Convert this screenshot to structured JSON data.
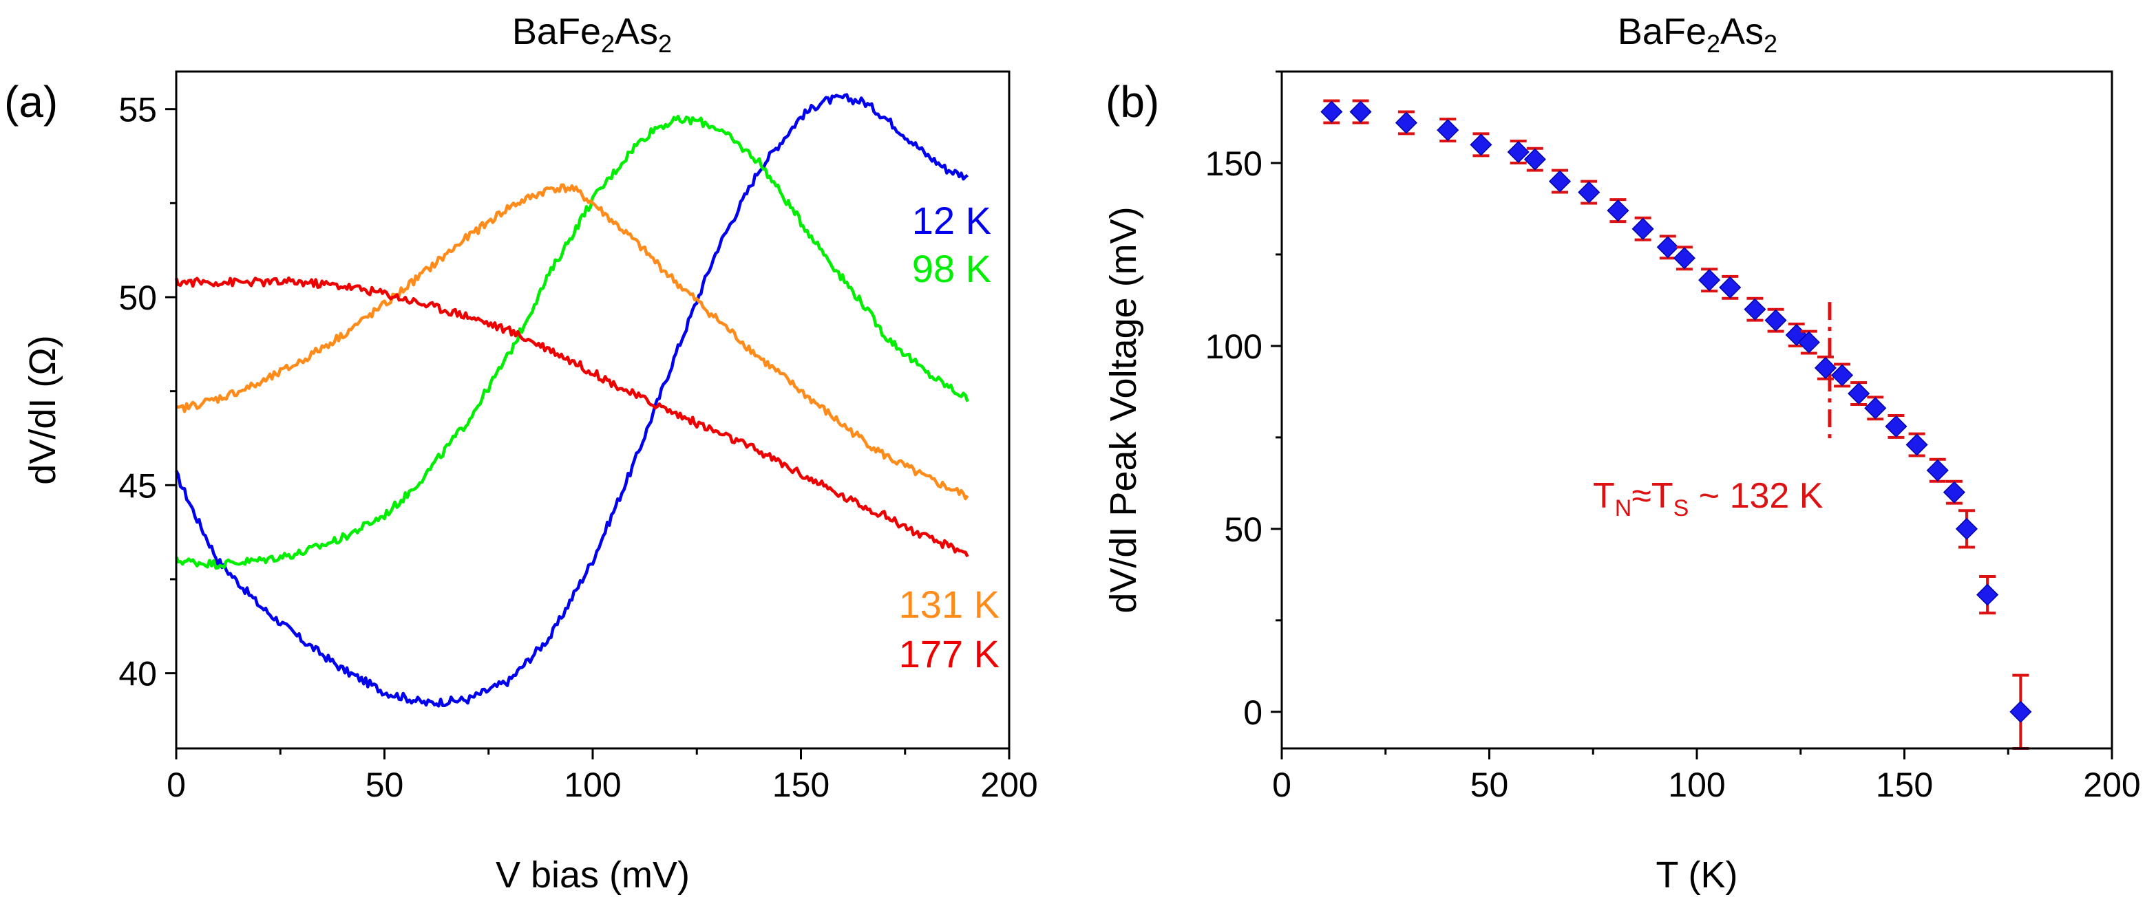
{
  "chart_data": [
    {
      "panel_label": "(a)",
      "type": "line",
      "title": {
        "main": "BaFe",
        "sub1": "2",
        "mid": "As",
        "sub2": "2"
      },
      "xlabel": "V bias (mV)",
      "ylabel": "dV/dI (Ω)",
      "xlim": [
        0,
        200
      ],
      "ylim": [
        38,
        56
      ],
      "xticks": [
        0,
        50,
        100,
        150,
        200
      ],
      "yticks": [
        40,
        45,
        50,
        55
      ],
      "grid": false,
      "series": [
        {
          "name": "12 K",
          "color": "#0000ee",
          "x": [
            0,
            5,
            10,
            20,
            30,
            40,
            50,
            60,
            70,
            80,
            90,
            100,
            110,
            120,
            130,
            140,
            150,
            155,
            160,
            165,
            170,
            175,
            180,
            185,
            190
          ],
          "y": [
            45.3,
            44.1,
            43.0,
            41.8,
            40.9,
            40.1,
            39.5,
            39.2,
            39.3,
            39.8,
            41.0,
            43.0,
            45.6,
            48.5,
            51.3,
            53.4,
            54.8,
            55.2,
            55.3,
            55.2,
            54.8,
            54.3,
            53.8,
            53.4,
            53.2
          ]
        },
        {
          "name": "98 K",
          "color": "#00ee00",
          "x": [
            0,
            10,
            20,
            30,
            40,
            50,
            55,
            60,
            70,
            80,
            90,
            100,
            110,
            115,
            120,
            125,
            130,
            140,
            150,
            160,
            165,
            170,
            180,
            190
          ],
          "y": [
            43.0,
            42.9,
            43.0,
            43.2,
            43.6,
            44.2,
            44.7,
            45.3,
            46.7,
            48.5,
            50.7,
            52.6,
            54.0,
            54.5,
            54.7,
            54.7,
            54.5,
            53.6,
            52.0,
            50.5,
            49.8,
            49.0,
            48.0,
            47.3
          ]
        },
        {
          "name": "131 K",
          "color": "#ff8c1a",
          "x": [
            0,
            10,
            20,
            30,
            40,
            50,
            60,
            70,
            80,
            90,
            95,
            100,
            110,
            120,
            130,
            140,
            150,
            160,
            170,
            180,
            190
          ],
          "y": [
            47.0,
            47.3,
            47.7,
            48.3,
            49.0,
            49.8,
            50.7,
            51.6,
            52.4,
            52.9,
            52.9,
            52.5,
            51.5,
            50.4,
            49.4,
            48.4,
            47.5,
            46.6,
            45.8,
            45.2,
            44.7
          ]
        },
        {
          "name": "177 K",
          "color": "#ee0000",
          "x": [
            0,
            10,
            20,
            30,
            40,
            50,
            60,
            70,
            80,
            90,
            100,
            110,
            120,
            130,
            140,
            150,
            160,
            170,
            180,
            190
          ],
          "y": [
            50.4,
            50.4,
            50.4,
            50.4,
            50.3,
            50.1,
            49.8,
            49.5,
            49.1,
            48.6,
            48.0,
            47.4,
            46.9,
            46.4,
            45.9,
            45.3,
            44.7,
            44.2,
            43.6,
            43.2
          ]
        }
      ],
      "legend": [
        {
          "text": "12 K",
          "color": "#0000ee"
        },
        {
          "text": "98 K",
          "color": "#00ee00"
        },
        {
          "text": "131 K",
          "color": "#ff8c1a"
        },
        {
          "text": "177 K",
          "color": "#ee0000"
        }
      ]
    },
    {
      "panel_label": "(b)",
      "type": "scatter",
      "title": {
        "main": "BaFe",
        "sub1": "2",
        "mid": "As",
        "sub2": "2"
      },
      "xlabel": "T (K)",
      "ylabel": "dV/dI Peak Voltage (mV)",
      "xlim": [
        0,
        200
      ],
      "ylim": [
        -10,
        175
      ],
      "xticks": [
        0,
        50,
        100,
        150,
        200
      ],
      "yticks": [
        0,
        50,
        100,
        150
      ],
      "grid": false,
      "marker_color": "#1a1aee",
      "errorbar_color": "#dd1111",
      "points": [
        {
          "x": 12,
          "y": 164,
          "err": 3
        },
        {
          "x": 19,
          "y": 164,
          "err": 3
        },
        {
          "x": 30,
          "y": 161,
          "err": 3
        },
        {
          "x": 40,
          "y": 159,
          "err": 3
        },
        {
          "x": 48,
          "y": 155,
          "err": 3
        },
        {
          "x": 57,
          "y": 153,
          "err": 3
        },
        {
          "x": 61,
          "y": 151,
          "err": 3
        },
        {
          "x": 67,
          "y": 145,
          "err": 3
        },
        {
          "x": 74,
          "y": 142,
          "err": 3
        },
        {
          "x": 81,
          "y": 137,
          "err": 3
        },
        {
          "x": 87,
          "y": 132,
          "err": 3
        },
        {
          "x": 93,
          "y": 127,
          "err": 3
        },
        {
          "x": 97,
          "y": 124,
          "err": 3
        },
        {
          "x": 103,
          "y": 118,
          "err": 3
        },
        {
          "x": 108,
          "y": 116,
          "err": 3
        },
        {
          "x": 114,
          "y": 110,
          "err": 3
        },
        {
          "x": 119,
          "y": 107,
          "err": 3
        },
        {
          "x": 124,
          "y": 103,
          "err": 3
        },
        {
          "x": 127,
          "y": 101,
          "err": 3
        },
        {
          "x": 131,
          "y": 94,
          "err": 3
        },
        {
          "x": 135,
          "y": 92,
          "err": 3
        },
        {
          "x": 139,
          "y": 87,
          "err": 3
        },
        {
          "x": 143,
          "y": 83,
          "err": 3
        },
        {
          "x": 148,
          "y": 78,
          "err": 3
        },
        {
          "x": 153,
          "y": 73,
          "err": 3
        },
        {
          "x": 158,
          "y": 66,
          "err": 3
        },
        {
          "x": 162,
          "y": 60,
          "err": 3
        },
        {
          "x": 165,
          "y": 50,
          "err": 5
        },
        {
          "x": 170,
          "y": 32,
          "err": 5
        },
        {
          "x": 178,
          "y": 0,
          "err": 10
        }
      ],
      "annotation": {
        "dashed_line_x": 132,
        "dashed_line_range": [
          73,
          112
        ],
        "label_T": "T",
        "label_N": "N",
        "label_approx": "≈T",
        "label_S": "S",
        "label_rest": " ~  132 K"
      }
    }
  ]
}
